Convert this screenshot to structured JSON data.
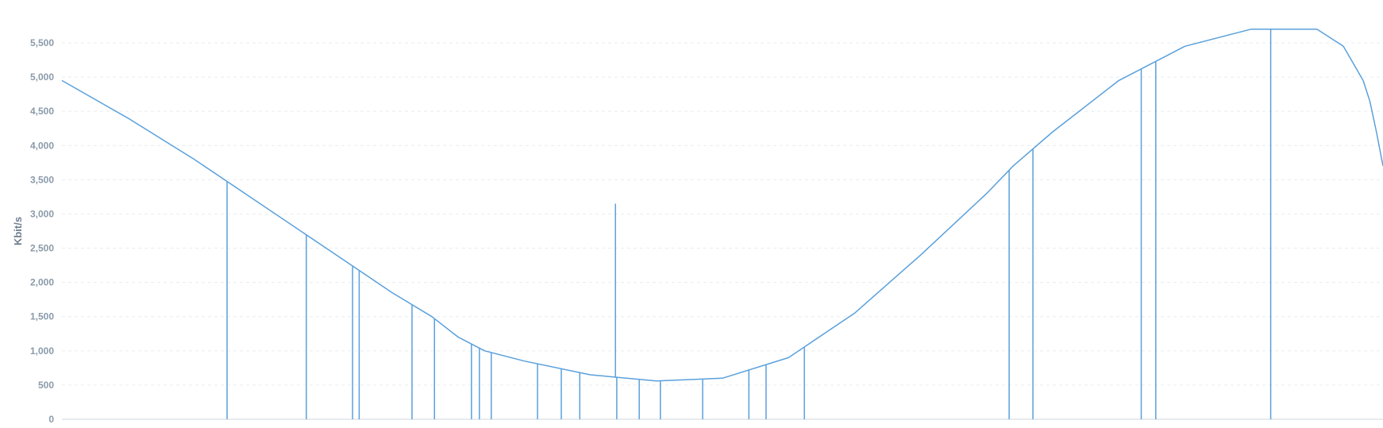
{
  "chart_data": {
    "type": "line",
    "title": "",
    "xlabel": "",
    "ylabel": "Kbit/s",
    "ylim": [
      0,
      5500
    ],
    "yticks": [
      0,
      500,
      1000,
      1500,
      2000,
      2500,
      3000,
      3500,
      4000,
      4500,
      5000,
      5500
    ],
    "ytick_labels": [
      "0",
      "500",
      "1,000",
      "1,500",
      "2,000",
      "2,500",
      "3,000",
      "3,500",
      "4,000",
      "4,500",
      "5,000",
      "5,500"
    ],
    "grid": true,
    "legend": "none",
    "color": "#5aa0dc",
    "x_range": [
      0,
      1
    ],
    "series": [
      {
        "values_curve": {
          "x": [
            0,
            0.05,
            0.1,
            0.15,
            0.2,
            0.25,
            0.28,
            0.3,
            0.32,
            0.35,
            0.4,
            0.45,
            0.5,
            0.55,
            0.6,
            0.65,
            0.7,
            0.72,
            0.75,
            0.8,
            0.85,
            0.9,
            0.95
          ],
          "y": [
            4950,
            4400,
            3800,
            3150,
            2500,
            1850,
            1500,
            1200,
            1000,
            850,
            650,
            560,
            600,
            900,
            1550,
            2400,
            3300,
            3700,
            4200,
            4950,
            5450,
            5700,
            5700
          ]
        },
        "drops_x": [
          0.125,
          0.185,
          0.22,
          0.225,
          0.265,
          0.282,
          0.31,
          0.316,
          0.325,
          0.36,
          0.378,
          0.392,
          0.42,
          0.437,
          0.453,
          0.485,
          0.52,
          0.533,
          0.562,
          0.717,
          0.735,
          0.817,
          0.828,
          0.915
        ],
        "spikes": [
          {
            "x": 0.419,
            "y": 3150
          }
        ]
      }
    ],
    "tail": {
      "x": [
        0.95,
        0.97,
        0.985,
        0.99,
        0.995,
        1.0
      ],
      "y": [
        5700,
        5450,
        4950,
        4650,
        4200,
        3700
      ]
    }
  }
}
